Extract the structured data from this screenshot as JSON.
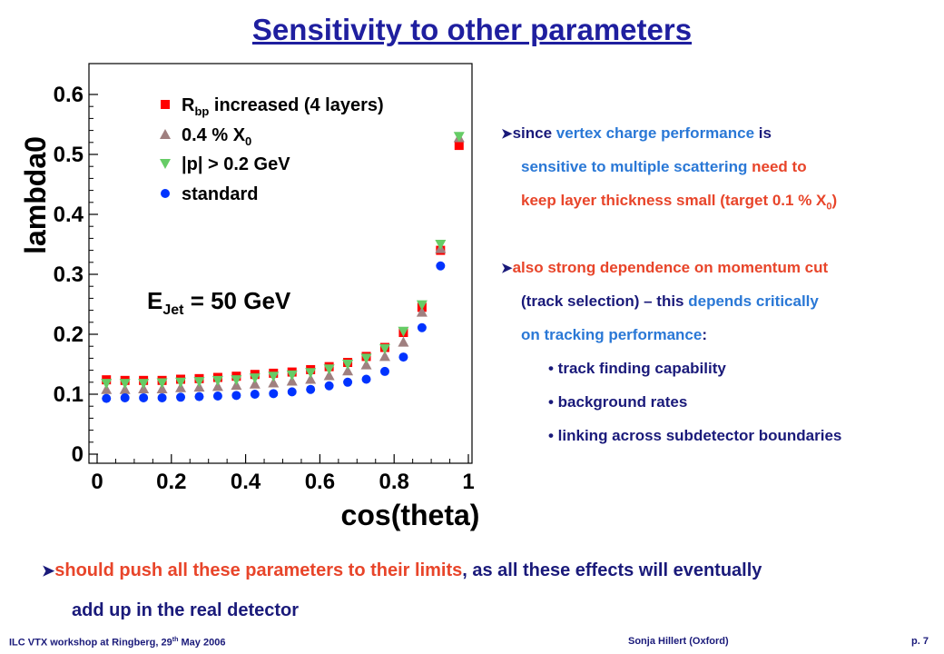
{
  "title": "Sensitivity to other parameters",
  "bullets": {
    "b1_l1_pre": "since ",
    "b1_l1_a": "vertex charge performance",
    "b1_l1_b": " is",
    "b1_l2_a": "sensitive to multiple scattering",
    "b1_l2_b": " need to",
    "b1_l3_a": "keep layer thickness small (target 0.1 % X",
    "b1_l3_sub": "0",
    "b1_l3_b": ")",
    "b2_l1": "also strong dependence on momentum cut",
    "b2_l2_a": "(track selection) – this ",
    "b2_l2_b": "depends critically",
    "b2_l3_a": "on tracking performance",
    "b2_l3_b": ":",
    "sub1": "• track finding capability",
    "sub2": "• background rates",
    "sub3": "• linking across subdetector boundaries"
  },
  "bottom": {
    "l1_a": "should push all these parameters to their limits",
    "l1_b": ", as all these effects will eventually",
    "l2": "add up in the real detector"
  },
  "footer": {
    "left_a": "ILC VTX workshop at Ringberg, 29",
    "left_sup": "th",
    "left_b": " May 2006",
    "center": "Sonja Hillert (Oxford)",
    "right": "p. 7"
  },
  "colors": {
    "title": "#1f1f9f",
    "dark_blue": "#1a1a7a",
    "light_blue": "#2a78d6",
    "red_orange": "#e8452a"
  },
  "chart_data": {
    "type": "scatter",
    "xlabel": "cos(theta)",
    "ylabel": "lambda0",
    "xlim": [
      0,
      1
    ],
    "ylim": [
      0,
      0.65
    ],
    "xticks": [
      "0",
      "0.2",
      "0.4",
      "0.6",
      "0.8",
      "1"
    ],
    "yticks": [
      "0",
      "0.1",
      "0.2",
      "0.3",
      "0.4",
      "0.5",
      "0.6"
    ],
    "annotation_main": "E",
    "annotation_sub": "Jet",
    "annotation_rest": " = 50 GeV",
    "x": [
      0.025,
      0.075,
      0.125,
      0.175,
      0.225,
      0.275,
      0.325,
      0.375,
      0.425,
      0.475,
      0.525,
      0.575,
      0.625,
      0.675,
      0.725,
      0.775,
      0.825,
      0.875,
      0.925,
      0.975
    ],
    "series": [
      {
        "name": "R",
        "name_sub": "bp",
        "name_rest": " increased (4 layers)",
        "marker": "square",
        "color": "#ff0000",
        "values": [
          0.124,
          0.123,
          0.123,
          0.123,
          0.125,
          0.126,
          0.128,
          0.13,
          0.133,
          0.135,
          0.137,
          0.141,
          0.146,
          0.153,
          0.163,
          0.178,
          0.203,
          0.245,
          0.34,
          0.515
        ]
      },
      {
        "name": "0.4 % X",
        "name_sub": "0",
        "name_rest": "",
        "marker": "triangle-up",
        "color": "#a08080",
        "values": [
          0.108,
          0.108,
          0.109,
          0.109,
          0.111,
          0.112,
          0.113,
          0.115,
          0.117,
          0.119,
          0.122,
          0.125,
          0.131,
          0.139,
          0.149,
          0.163,
          0.187,
          0.237,
          0.343,
          0.528
        ]
      },
      {
        "name": "|p| > 0.2 GeV",
        "name_sub": "",
        "name_rest": "",
        "marker": "triangle-down",
        "color": "#66cc66",
        "values": [
          0.118,
          0.118,
          0.118,
          0.119,
          0.12,
          0.121,
          0.123,
          0.124,
          0.127,
          0.13,
          0.132,
          0.136,
          0.142,
          0.15,
          0.16,
          0.176,
          0.205,
          0.249,
          0.35,
          0.53
        ]
      },
      {
        "name": "standard",
        "name_sub": "",
        "name_rest": "",
        "marker": "circle",
        "color": "#0033ff",
        "values": [
          0.093,
          0.094,
          0.094,
          0.094,
          0.095,
          0.096,
          0.097,
          0.098,
          0.1,
          0.101,
          0.104,
          0.108,
          0.114,
          0.12,
          0.125,
          0.138,
          0.162,
          0.211,
          0.314,
          null
        ]
      }
    ]
  }
}
